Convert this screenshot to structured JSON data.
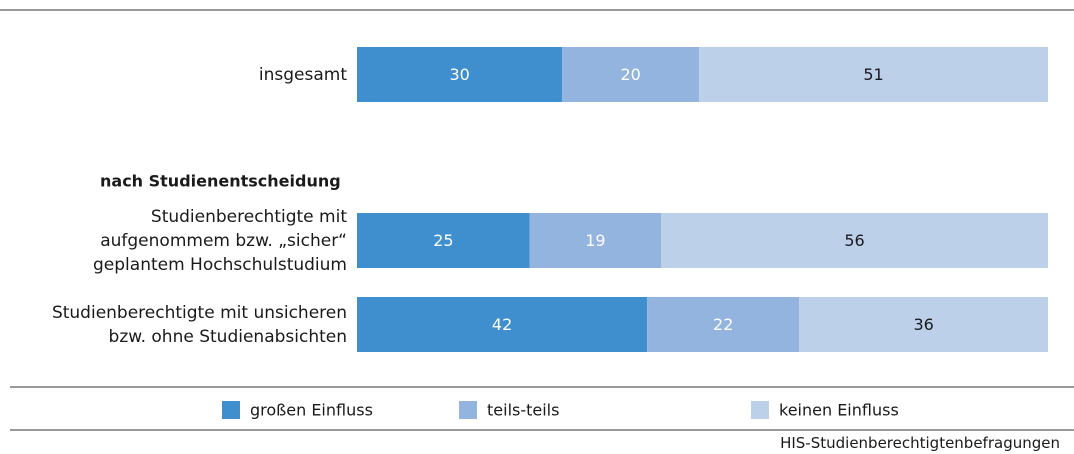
{
  "chart_data": {
    "type": "stacked_bar_horizontal",
    "group_label": "nach Studienentscheidung",
    "categories": [
      "insgesamt",
      "Studienberechtigte mit\naufgenommem bzw. „sicher“\ngeplantem Hochschulstudium",
      "Studienberechtigte mit unsicheren\nbzw. ohne Studienabsichten"
    ],
    "series": [
      {
        "name": "großen Einfluss",
        "color": "#3f8fce",
        "label_color": "#ffffff",
        "values": [
          30,
          25,
          42
        ]
      },
      {
        "name": "teils-teils",
        "color": "#93b4df",
        "label_color": "#ffffff",
        "values": [
          20,
          19,
          22
        ]
      },
      {
        "name": "keinen Einfluss",
        "color": "#bcd0ea",
        "label_color": "#1a1a1a",
        "values": [
          51,
          56,
          36
        ]
      }
    ],
    "source": "HIS-Studienberechtigtenbefragungen"
  }
}
